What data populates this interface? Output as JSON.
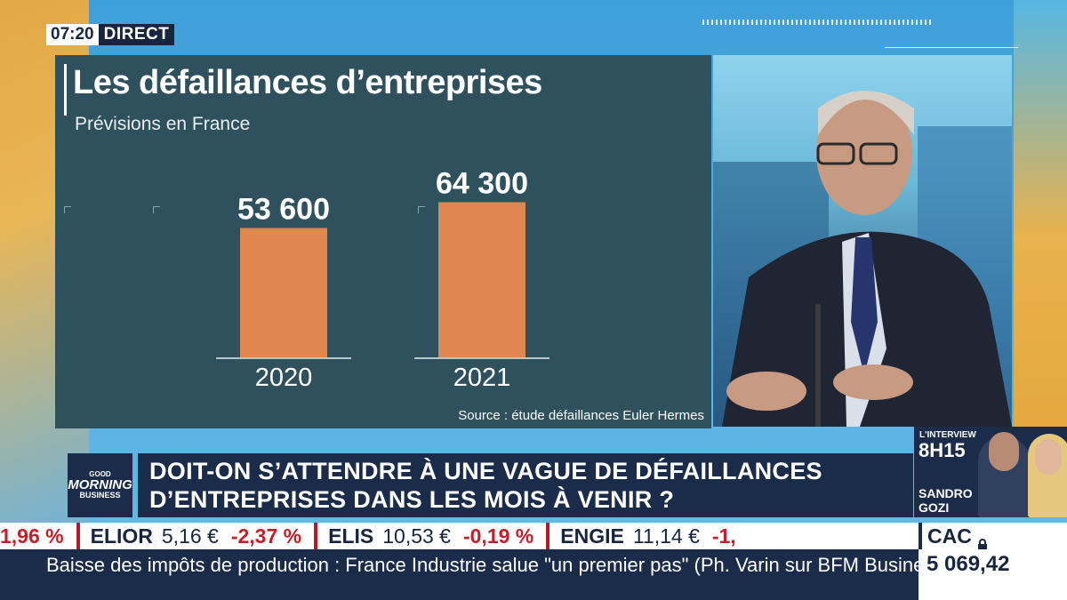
{
  "clock": {
    "time": "07:20",
    "live_label": "DIRECT"
  },
  "chart_data": {
    "type": "bar",
    "title": "Les défaillances d’entreprises",
    "subtitle": "Prévisions en France",
    "categories": [
      "2020",
      "2021"
    ],
    "values": [
      53600,
      64300
    ],
    "value_labels": [
      "53 600",
      "64 300"
    ],
    "ylim": [
      0,
      70000
    ],
    "grid": false,
    "source": "Source : étude défaillances Euler Hermes",
    "colors": {
      "bar": "#e08651",
      "background": "#2f515d",
      "text": "#ffffff"
    }
  },
  "headline": {
    "logo": {
      "line1": "GOOD",
      "line2": "MORNING",
      "line3": "BUSINESS"
    },
    "line1": "DOIT-ON S’ATTENDRE À UNE VAGUE DE DÉFAILLANCES",
    "line2": "D’ENTREPRISES DANS LES MOIS À VENIR ?"
  },
  "promo": {
    "kicker": "L'INTERVIEW",
    "time": "8H15",
    "first_name": "SANDRO",
    "last_name": "GOZI"
  },
  "ticker": {
    "lead_change": "1,96 %",
    "items": [
      {
        "name": "ELIOR",
        "price": "5,16 €",
        "change": "-2,37 %"
      },
      {
        "name": "ELIS",
        "price": "10,53 €",
        "change": "-0,19 %"
      },
      {
        "name": "ENGIE",
        "price": "11,14 €",
        "change": "-1,"
      }
    ],
    "index_name": "CAC",
    "index_value": "5 069,42"
  },
  "crawl": {
    "text": "Baisse des impôts de production : France Industrie salue \"un premier pas\" (Ph. Varin sur BFM Business)."
  },
  "colors": {
    "navy": "#1b2c4a",
    "ticker_red": "#c41e2a",
    "accent_orange": "#e08651"
  }
}
